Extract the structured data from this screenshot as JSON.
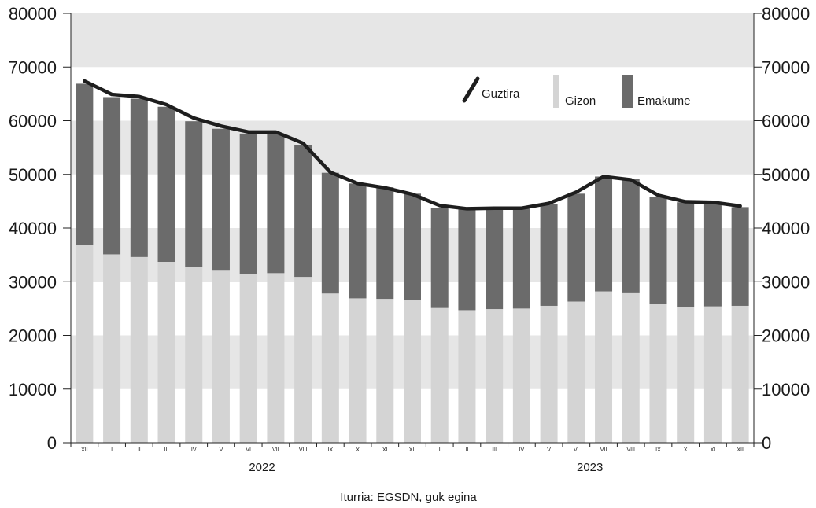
{
  "chart_data": {
    "type": "bar",
    "stacked": true,
    "categories": [
      "XII",
      "I",
      "II",
      "III",
      "IV",
      "V",
      "VI",
      "VII",
      "VIII",
      "IX",
      "X",
      "XI",
      "XII",
      "I",
      "II",
      "III",
      "IV",
      "V",
      "VI",
      "VII",
      "VIII",
      "IX",
      "X",
      "XI",
      "XII"
    ],
    "years": [
      {
        "label": "2022",
        "from": 1,
        "to": 12
      },
      {
        "label": "2023",
        "from": 13,
        "to": 24
      }
    ],
    "series": [
      {
        "name": "Gizon",
        "kind": "bar",
        "color": "#d4d4d4",
        "values": [
          36800,
          35100,
          34600,
          33700,
          32800,
          32200,
          31500,
          31600,
          30900,
          27800,
          26900,
          26800,
          26600,
          25100,
          24700,
          24900,
          25000,
          25500,
          26300,
          28200,
          28000,
          25900,
          25300,
          25400,
          25500
        ]
      },
      {
        "name": "Emakume",
        "kind": "bar",
        "color": "#6b6b6b",
        "values": [
          30100,
          29300,
          29500,
          28900,
          27100,
          26300,
          26100,
          26000,
          24600,
          22500,
          21400,
          20800,
          19800,
          18700,
          18800,
          18800,
          18600,
          18900,
          20100,
          21400,
          21200,
          19900,
          19500,
          19400,
          18400
        ]
      },
      {
        "name": "Guztira",
        "kind": "line",
        "color": "#1e1e1e",
        "values": [
          67400,
          64900,
          64500,
          63000,
          60500,
          59000,
          57900,
          57900,
          55800,
          50400,
          48300,
          47500,
          46300,
          44200,
          43600,
          43700,
          43700,
          44600,
          46700,
          49600,
          49000,
          46100,
          44900,
          44800,
          44100
        ]
      }
    ],
    "ylim": [
      0,
      80000
    ],
    "yticks": [
      0,
      10000,
      20000,
      30000,
      40000,
      50000,
      60000,
      70000,
      80000
    ],
    "legend": {
      "labels": [
        "Guztira",
        "Gizon",
        "Emakume"
      ],
      "position": "top-right"
    },
    "source": "Iturria: EGSDN, guk egina",
    "grid": "alternating bands"
  }
}
